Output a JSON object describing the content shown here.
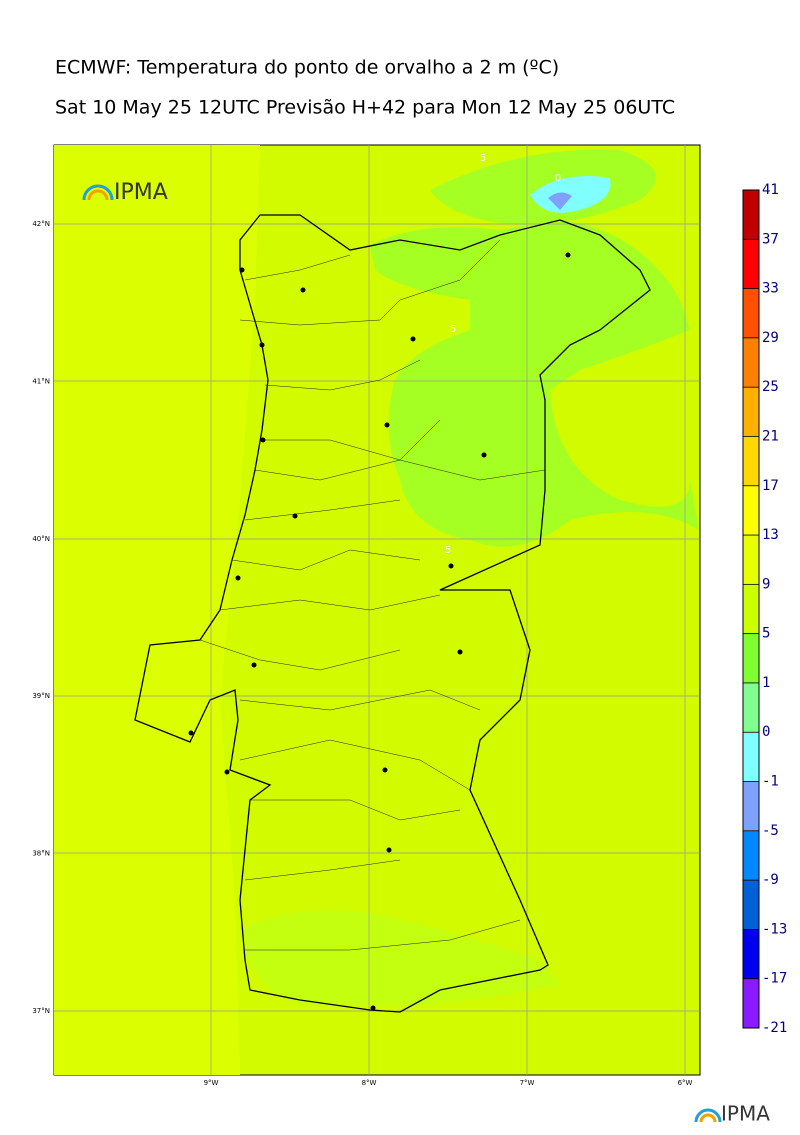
{
  "header": {
    "title": "ECMWF: Temperatura do ponto de orvalho a 2 m (ºC)",
    "subtitle": "Sat 10 May 25 12UTC Previsão H+42 para Mon 12 May 25 06UTC"
  },
  "map": {
    "lat_labels": [
      "42°N",
      "41°N",
      "40°N",
      "39°N",
      "38°N",
      "37°N"
    ],
    "lon_labels": [
      "9°W",
      "8°W",
      "7°W",
      "6°W"
    ],
    "contour_labels": [
      "5",
      "0",
      "5",
      "5"
    ],
    "logo": "IPMA"
  },
  "colorbar": {
    "ticks": [
      -21,
      -17,
      -13,
      -9,
      -5,
      -1,
      0,
      1,
      5,
      9,
      13,
      17,
      21,
      25,
      29,
      33,
      37,
      41
    ],
    "colors": [
      "#8a1aff",
      "#0000f0",
      "#0060d8",
      "#0088ff",
      "#7fa0ff",
      "#80ffff",
      "#80ff90",
      "#80ff30",
      "#ccff00",
      "#e8ff00",
      "#ffff00",
      "#ffd800",
      "#ffb000",
      "#ff8000",
      "#ff5000",
      "#ff0000",
      "#c00000"
    ]
  },
  "footer": {
    "logo": "IPMA"
  }
}
